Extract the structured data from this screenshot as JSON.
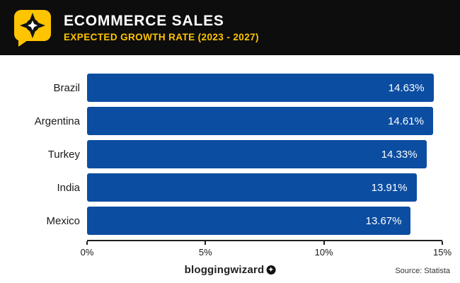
{
  "header": {
    "title": "ECOMMERCE SALES",
    "subtitle": "EXPECTED GROWTH RATE (2023 - 2027)"
  },
  "footer": {
    "brand": "bloggingwizard",
    "brand_badge": "✦",
    "source": "Source: Statista"
  },
  "colors": {
    "bar": "#0b4da1",
    "header_bg": "#0d0d0d",
    "accent_yellow": "#ffc400"
  },
  "chart_data": {
    "type": "bar",
    "orientation": "horizontal",
    "title": "ECOMMERCE SALES",
    "subtitle": "EXPECTED GROWTH RATE (2023 - 2027)",
    "categories": [
      "Brazil",
      "Argentina",
      "Turkey",
      "India",
      "Mexico"
    ],
    "values": [
      14.63,
      14.61,
      14.33,
      13.91,
      13.67
    ],
    "value_labels": [
      "14.63%",
      "14.61%",
      "14.33%",
      "13.91%",
      "13.67%"
    ],
    "x_ticks": [
      "0%",
      "5%",
      "10%",
      "15%"
    ],
    "x_tick_values": [
      0,
      5,
      10,
      15
    ],
    "xlim": [
      0,
      15
    ],
    "grid": false,
    "legend": false
  }
}
